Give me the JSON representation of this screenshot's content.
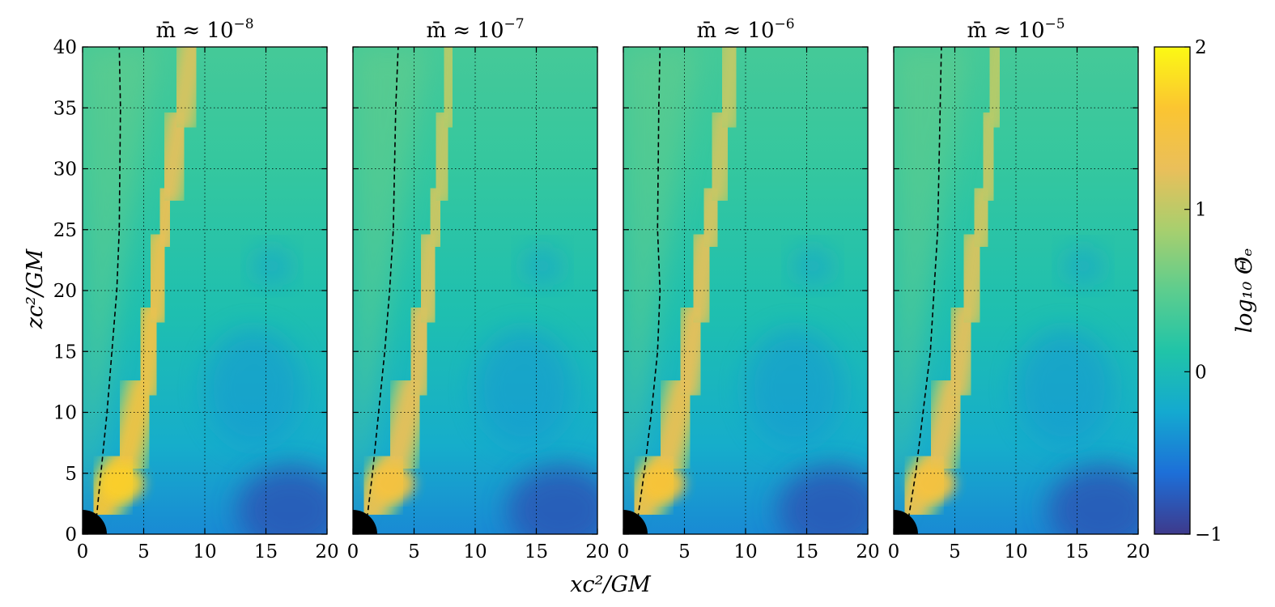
{
  "chart_data": {
    "type": "heatmap",
    "panels": [
      {
        "title": "m̄ ≈ 10⁻⁸",
        "title_base": "m̄ ≈ 10",
        "title_exp": "−8",
        "dashed_line": {
          "x": [
            1.0,
            1.5,
            2.0,
            2.4,
            2.8,
            3.0,
            3.1,
            3.0
          ],
          "y": [
            0,
            5,
            10,
            15,
            20,
            25,
            35,
            40
          ]
        },
        "jet_spine": {
          "x": [
            1.5,
            3.5,
            5.0,
            5.8,
            6.5,
            7.0,
            8.0,
            9.0
          ],
          "y": [
            2,
            6,
            12,
            18,
            24,
            28,
            34,
            40
          ]
        },
        "jet_peak": 1.55
      },
      {
        "title": "m̄ ≈ 10⁻⁷",
        "title_base": "m̄ ≈ 10",
        "title_exp": "−7",
        "dashed_line": {
          "x": [
            1.0,
            1.6,
            2.1,
            2.6,
            3.0,
            3.3,
            3.5,
            3.7
          ],
          "y": [
            0,
            5,
            10,
            15,
            20,
            25,
            35,
            40
          ]
        },
        "jet_spine": {
          "x": [
            1.5,
            3.5,
            5.0,
            5.8,
            6.5,
            7.0,
            7.6,
            8.0
          ],
          "y": [
            2,
            6,
            12,
            18,
            24,
            28,
            34,
            40
          ]
        },
        "jet_peak": 1.35
      },
      {
        "title": "m̄ ≈ 10⁻⁶",
        "title_base": "m̄ ≈ 10",
        "title_exp": "−6",
        "dashed_line": {
          "x": [
            1.0,
            1.7,
            2.3,
            2.8,
            3.0,
            2.8,
            2.9,
            3.0
          ],
          "y": [
            0,
            5,
            10,
            15,
            20,
            25,
            35,
            40
          ]
        },
        "jet_spine": {
          "x": [
            1.5,
            3.5,
            5.0,
            6.0,
            6.8,
            7.5,
            8.3,
            9.0
          ],
          "y": [
            2,
            6,
            12,
            18,
            24,
            28,
            34,
            40
          ]
        },
        "jet_peak": 1.4
      },
      {
        "title": "m̄ ≈ 10⁻⁵",
        "title_base": "m̄ ≈ 10",
        "title_exp": "−5",
        "dashed_line": {
          "x": [
            1.0,
            1.8,
            2.4,
            3.0,
            3.3,
            3.6,
            3.8,
            3.9
          ],
          "y": [
            0,
            5,
            10,
            15,
            20,
            25,
            35,
            40
          ]
        },
        "jet_spine": {
          "x": [
            1.5,
            3.5,
            5.0,
            6.0,
            6.8,
            7.5,
            8.0,
            8.5
          ],
          "y": [
            2,
            6,
            12,
            18,
            24,
            28,
            34,
            40
          ]
        },
        "jet_peak": 1.35
      }
    ],
    "xlabel": "xc²/GM",
    "ylabel": "zc²/GM",
    "xlim": [
      0,
      20
    ],
    "ylim": [
      0,
      40
    ],
    "xticks": [
      "0",
      "5",
      "10",
      "15",
      "20"
    ],
    "yticks": [
      "0",
      "5",
      "10",
      "15",
      "20",
      "25",
      "30",
      "35",
      "40"
    ],
    "grid": "dotted",
    "colorbar": {
      "label": "log₁₀ Θ̄ₑ",
      "range": [
        -1,
        2
      ],
      "ticks": [
        "−1",
        "0",
        "1",
        "2"
      ],
      "colormap": [
        "#3e3a8c",
        "#1d6fd8",
        "#14a9d0",
        "#20c4a8",
        "#5dcd8e",
        "#a8cf6e",
        "#eabf5a",
        "#fbc531",
        "#fbf914"
      ]
    },
    "black_hole_color": "#000000"
  }
}
